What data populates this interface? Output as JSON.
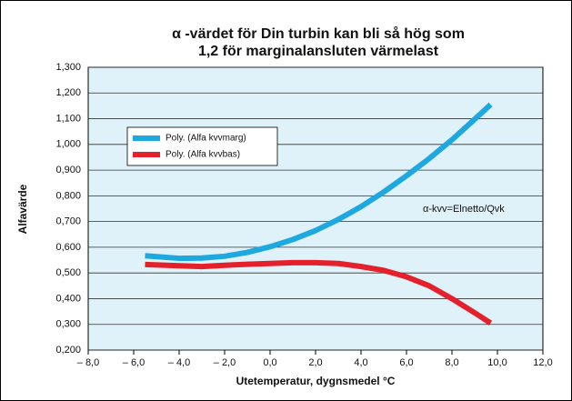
{
  "chart_data": {
    "type": "line",
    "title": [
      "α -värdet för Din  turbin kan bli så hög som",
      "1,2 för marginalansluten värmelast"
    ],
    "xlabel": "Utetemperatur, dygnsmedel °C",
    "ylabel": "Alfavärde",
    "annotation": "α-kvv=Elnetto/Qvk",
    "x": [
      -5.5,
      -4,
      -3,
      -2,
      -1,
      0,
      1,
      2,
      3,
      4,
      5,
      6,
      7,
      8,
      9,
      9.7
    ],
    "series": [
      {
        "name": "Poly. (Alfa kvvmarg)",
        "color": "#1ea8e0",
        "values": [
          0.567,
          0.557,
          0.558,
          0.565,
          0.58,
          0.602,
          0.63,
          0.665,
          0.708,
          0.758,
          0.815,
          0.878,
          0.945,
          1.018,
          1.098,
          1.155
        ]
      },
      {
        "name": "Poly. (Alfa kvvbas)",
        "color": "#e3202c",
        "values": [
          0.533,
          0.528,
          0.525,
          0.53,
          0.534,
          0.537,
          0.54,
          0.54,
          0.537,
          0.525,
          0.51,
          0.485,
          0.45,
          0.4,
          0.345,
          0.305
        ]
      }
    ],
    "xlim": [
      -8,
      12
    ],
    "xticks": [
      {
        "value": -8,
        "label": "– 8,0"
      },
      {
        "value": -6,
        "label": "– 6,0"
      },
      {
        "value": -4,
        "label": "– 4,0"
      },
      {
        "value": -2,
        "label": "– 2,0"
      },
      {
        "value": 0,
        "label": "0,0"
      },
      {
        "value": 2,
        "label": "2,0"
      },
      {
        "value": 4,
        "label": "4,0"
      },
      {
        "value": 6,
        "label": "6,0"
      },
      {
        "value": 8,
        "label": "8,0"
      },
      {
        "value": 10,
        "label": "10,0"
      },
      {
        "value": 12,
        "label": "12,0"
      }
    ],
    "ylim": [
      0.2,
      1.3
    ],
    "yticks": [
      {
        "value": 0.2,
        "label": "0,200"
      },
      {
        "value": 0.3,
        "label": "0,300"
      },
      {
        "value": 0.4,
        "label": "0,400"
      },
      {
        "value": 0.5,
        "label": "0,500"
      },
      {
        "value": 0.6,
        "label": "0,600"
      },
      {
        "value": 0.7,
        "label": "0,700"
      },
      {
        "value": 0.8,
        "label": "0,800"
      },
      {
        "value": 0.9,
        "label": "0,900"
      },
      {
        "value": 1.0,
        "label": "1,000"
      },
      {
        "value": 1.1,
        "label": "1,100"
      },
      {
        "value": 1.2,
        "label": "1,200"
      },
      {
        "value": 1.3,
        "label": "1,300"
      }
    ],
    "grid": true,
    "legend": "upper left"
  }
}
